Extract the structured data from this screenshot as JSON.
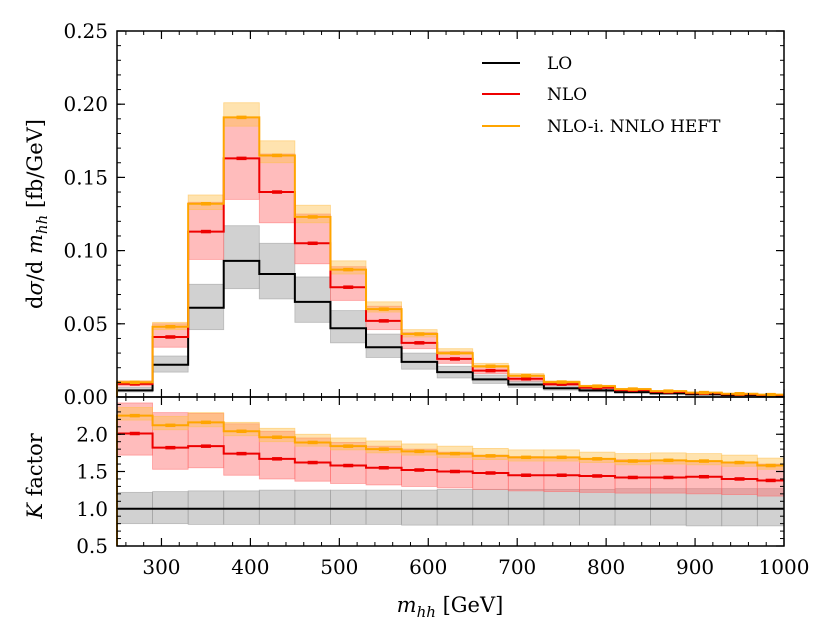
{
  "chart_data": [
    {
      "type": "step-histogram",
      "ylabel": "dσ/d m_hh [fb/GeV]",
      "ylabel_parts": {
        "d1": "d",
        "sigma": "σ",
        "slash": "/d ",
        "m": "m",
        "sub": "hh",
        "unit": " [fb/GeV]"
      },
      "xlim": [
        250,
        1000
      ],
      "ylim": [
        0,
        0.25
      ],
      "yticks": [
        "0.00",
        "0.05",
        "0.10",
        "0.15",
        "0.20",
        "0.25"
      ],
      "legend_position": "top-right",
      "bin_edges": [
        250,
        290,
        330,
        370,
        410,
        450,
        490,
        530,
        570,
        610,
        650,
        690,
        730,
        770,
        810,
        850,
        890,
        930,
        970,
        1000
      ],
      "series": [
        {
          "name": "LO",
          "color": "#000000",
          "band_color": "#999999",
          "values": [
            0.0045,
            0.022,
            0.061,
            0.093,
            0.084,
            0.065,
            0.047,
            0.034,
            0.024,
            0.017,
            0.012,
            0.0085,
            0.006,
            0.0045,
            0.0033,
            0.0025,
            0.0018,
            0.0013,
            0.001
          ],
          "lower": [
            0.0035,
            0.017,
            0.046,
            0.074,
            0.067,
            0.051,
            0.037,
            0.027,
            0.019,
            0.013,
            0.0093,
            0.0066,
            0.0047,
            0.0035,
            0.0026,
            0.0019,
            0.0014,
            0.001,
            0.0008
          ],
          "upper": [
            0.0065,
            0.028,
            0.077,
            0.117,
            0.105,
            0.082,
            0.059,
            0.043,
            0.03,
            0.021,
            0.015,
            0.0107,
            0.0076,
            0.0057,
            0.0042,
            0.0031,
            0.0023,
            0.0017,
            0.0013
          ]
        },
        {
          "name": "NLO",
          "color": "#ee0000",
          "band_color": "#ff6a6a",
          "values": [
            0.009,
            0.041,
            0.113,
            0.163,
            0.14,
            0.105,
            0.075,
            0.052,
            0.037,
            0.026,
            0.018,
            0.0125,
            0.0088,
            0.0064,
            0.0047,
            0.0035,
            0.0026,
            0.0019,
            0.0014
          ],
          "lower": [
            0.0075,
            0.034,
            0.094,
            0.135,
            0.119,
            0.091,
            0.066,
            0.046,
            0.033,
            0.023,
            0.016,
            0.011,
            0.0078,
            0.0057,
            0.0042,
            0.0031,
            0.0023,
            0.0017,
            0.0012
          ],
          "upper": [
            0.011,
            0.05,
            0.133,
            0.191,
            0.166,
            0.125,
            0.089,
            0.062,
            0.044,
            0.031,
            0.021,
            0.015,
            0.0105,
            0.0076,
            0.0056,
            0.0042,
            0.0031,
            0.0023,
            0.0017
          ]
        },
        {
          "name": "NLO-i. NNLO HEFT",
          "color": "#ffa500",
          "band_color": "#ffc04d",
          "values": [
            0.01,
            0.048,
            0.132,
            0.191,
            0.165,
            0.123,
            0.087,
            0.06,
            0.043,
            0.03,
            0.021,
            0.0145,
            0.0102,
            0.0074,
            0.0054,
            0.004,
            0.003,
            0.0022,
            0.0016
          ],
          "lower": [
            0.0095,
            0.046,
            0.128,
            0.185,
            0.16,
            0.119,
            0.084,
            0.058,
            0.041,
            0.029,
            0.02,
            0.014,
            0.0098,
            0.0071,
            0.0052,
            0.0038,
            0.0029,
            0.0021,
            0.0015
          ],
          "upper": [
            0.011,
            0.051,
            0.138,
            0.201,
            0.175,
            0.131,
            0.093,
            0.065,
            0.046,
            0.033,
            0.023,
            0.016,
            0.011,
            0.008,
            0.0059,
            0.0044,
            0.0033,
            0.0024,
            0.0018
          ]
        }
      ]
    },
    {
      "type": "step-histogram",
      "ylabel": "K factor",
      "ylabel_parts": {
        "k": "K",
        "rest": " factor"
      },
      "xlabel": "m_hh [GeV]",
      "xlabel_parts": {
        "m": "m",
        "sub": "hh",
        "unit": " [GeV]"
      },
      "xlim": [
        250,
        1000
      ],
      "ylim": [
        0.5,
        2.5
      ],
      "yticks": [
        "0.5",
        "1.0",
        "1.5",
        "2.0"
      ],
      "xticks": [
        "300",
        "400",
        "500",
        "600",
        "700",
        "800",
        "900",
        "1000"
      ],
      "bin_edges": [
        250,
        290,
        330,
        370,
        410,
        450,
        490,
        530,
        570,
        610,
        650,
        690,
        730,
        770,
        810,
        850,
        890,
        930,
        970,
        1000
      ],
      "series": [
        {
          "name": "LO",
          "color": "#000000",
          "band_color": "#999999",
          "values": [
            1.0,
            1.0,
            1.0,
            1.0,
            1.0,
            1.0,
            1.0,
            1.0,
            1.0,
            1.0,
            1.0,
            1.0,
            1.0,
            1.0,
            1.0,
            1.0,
            1.0,
            1.0,
            1.0
          ],
          "lower": [
            0.8,
            0.8,
            0.79,
            0.79,
            0.79,
            0.79,
            0.79,
            0.79,
            0.78,
            0.78,
            0.78,
            0.78,
            0.78,
            0.78,
            0.78,
            0.78,
            0.77,
            0.77,
            0.77
          ],
          "upper": [
            1.22,
            1.23,
            1.24,
            1.24,
            1.25,
            1.25,
            1.25,
            1.25,
            1.25,
            1.26,
            1.26,
            1.26,
            1.26,
            1.26,
            1.27,
            1.27,
            1.27,
            1.27,
            1.27
          ]
        },
        {
          "name": "NLO",
          "color": "#ee0000",
          "band_color": "#ff6a6a",
          "values": [
            2.01,
            1.82,
            1.84,
            1.74,
            1.67,
            1.62,
            1.58,
            1.55,
            1.52,
            1.5,
            1.48,
            1.45,
            1.45,
            1.44,
            1.42,
            1.42,
            1.43,
            1.4,
            1.38
          ],
          "lower": [
            1.72,
            1.53,
            1.55,
            1.45,
            1.4,
            1.37,
            1.34,
            1.32,
            1.3,
            1.28,
            1.26,
            1.24,
            1.23,
            1.22,
            1.21,
            1.21,
            1.2,
            1.19,
            1.17
          ],
          "upper": [
            2.42,
            2.29,
            2.28,
            2.14,
            2.04,
            1.95,
            1.89,
            1.84,
            1.8,
            1.76,
            1.72,
            1.7,
            1.69,
            1.67,
            1.66,
            1.65,
            1.64,
            1.62,
            1.6
          ]
        },
        {
          "name": "NLO-i. NNLO HEFT",
          "color": "#ffa500",
          "band_color": "#ffc04d",
          "values": [
            2.25,
            2.12,
            2.16,
            2.04,
            1.96,
            1.89,
            1.84,
            1.8,
            1.77,
            1.74,
            1.71,
            1.69,
            1.69,
            1.67,
            1.64,
            1.65,
            1.64,
            1.62,
            1.58
          ],
          "lower": [
            2.19,
            2.06,
            2.1,
            1.98,
            1.9,
            1.84,
            1.79,
            1.75,
            1.72,
            1.69,
            1.66,
            1.64,
            1.64,
            1.62,
            1.59,
            1.6,
            1.59,
            1.57,
            1.53
          ],
          "upper": [
            2.36,
            2.24,
            2.29,
            2.16,
            2.08,
            2.0,
            1.95,
            1.91,
            1.87,
            1.84,
            1.81,
            1.79,
            1.79,
            1.76,
            1.74,
            1.75,
            1.74,
            1.72,
            1.68
          ]
        }
      ]
    }
  ]
}
